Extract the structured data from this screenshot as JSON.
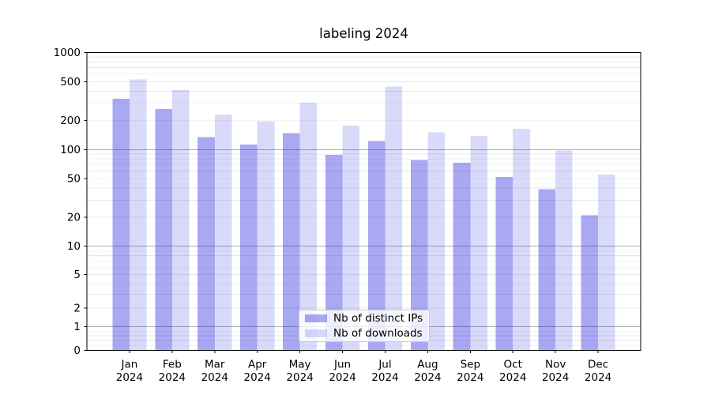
{
  "title": "labeling 2024",
  "colors": {
    "ips_fill": "rgba(0,0,220,0.34)",
    "downloads_fill": "rgba(0,0,220,0.15)",
    "major_grid": "#b0b0b0",
    "minor_grid": "#e8e8e8",
    "axis": "#000000",
    "text": "#000000",
    "legend_border": "#cccccc"
  },
  "chart_data": {
    "type": "bar",
    "title": "labeling 2024",
    "categories": [
      "Jan",
      "Feb",
      "Mar",
      "Apr",
      "May",
      "Jun",
      "Jul",
      "Aug",
      "Sep",
      "Oct",
      "Nov",
      "Dec"
    ],
    "year": "2024",
    "series": [
      {
        "name": "Nb of distinct IPs",
        "values": [
          335,
          262,
          135,
          112,
          148,
          88,
          122,
          78,
          73,
          52,
          39,
          21
        ]
      },
      {
        "name": "Nb of downloads",
        "values": [
          530,
          410,
          230,
          196,
          305,
          176,
          445,
          150,
          138,
          163,
          98,
          55
        ]
      }
    ],
    "xlabel": "",
    "ylabel": "",
    "ylim": [
      0,
      1000
    ],
    "yscale": "symlog",
    "y_ticks": [
      0,
      1,
      2,
      5,
      10,
      20,
      50,
      100,
      200,
      500,
      1000
    ],
    "y_major_gridlines": [
      1,
      10,
      100,
      1000
    ],
    "y_minor_gridlines": [
      0.2,
      0.4,
      0.6,
      0.8,
      2,
      3,
      4,
      5,
      6,
      7,
      8,
      9,
      20,
      30,
      40,
      50,
      60,
      70,
      80,
      90,
      200,
      300,
      400,
      500,
      600,
      700,
      800,
      900
    ],
    "grid": "horizontal major+minor",
    "legend_position": "lower center"
  }
}
